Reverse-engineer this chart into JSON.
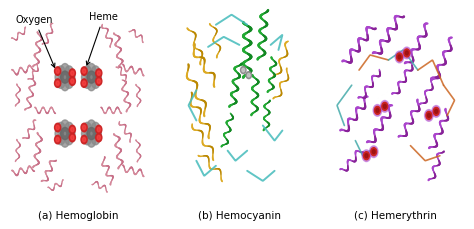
{
  "figsize": [
    4.74,
    2.29
  ],
  "dpi": 100,
  "bg_color": "#ffffff",
  "panels": [
    {
      "label": "(a) Hemoglobin"
    },
    {
      "label": "(b) Hemocyanin"
    },
    {
      "label": "(c) Hemerythrin"
    }
  ],
  "label_fontsize": 7.5,
  "annotation_fontsize": 7,
  "hemoglobin": {
    "ribbon_color": "#d4889a",
    "ribbon_color2": "#c87088",
    "heme_gray": "#888888",
    "heme_gray2": "#666666",
    "oxygen_red": "#cc2222",
    "oxygen_red2": "#ff4444",
    "bg": "#f0e8e8"
  },
  "hemocyanin": {
    "green1": "#22aa33",
    "green2": "#118822",
    "gold1": "#ddaa22",
    "gold2": "#bb8800",
    "teal1": "#44bbbb",
    "teal2": "#228888",
    "gray1": "#888888",
    "bg": "#e8f0e8"
  },
  "hemerythrin": {
    "purple1": "#aa44cc",
    "purple2": "#882299",
    "red1": "#cc2222",
    "red2": "#991111",
    "orange1": "#cc6622",
    "teal1": "#44aaaa",
    "bg": "#ece8f0"
  }
}
